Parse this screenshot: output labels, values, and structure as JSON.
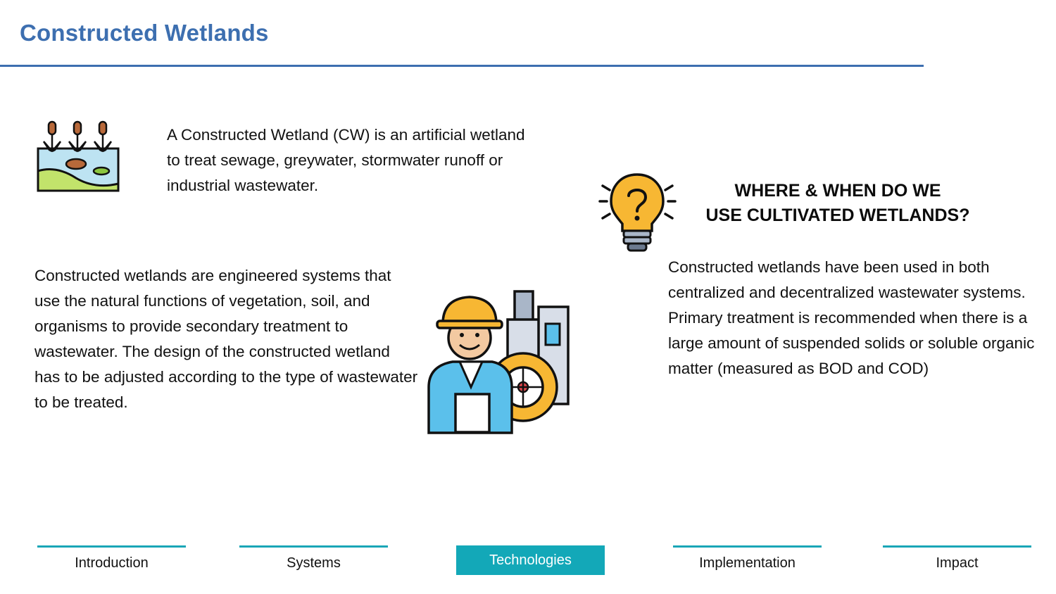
{
  "header": {
    "title": "Constructed Wetlands"
  },
  "intro": {
    "text": "A Constructed Wetland (CW) is an artificial wetland to treat sewage, greywater, stormwater runoff or industrial wastewater."
  },
  "body_left": {
    "text": "Constructed wetlands are engineered systems that use the natural functions of vegetation, soil, and organisms to provide secondary treatment to wastewater. The design of the constructed wetland has to be adjusted according to the type of wastewater to be treated."
  },
  "question": {
    "heading_line1": "WHERE & WHEN DO WE",
    "heading_line2": "USE CULTIVATED WETLANDS?",
    "text": "Constructed wetlands have been used in both centralized and decentralized wastewater systems. Primary treatment is recommended when there is a large amount of suspended solids or soluble organic matter (measured as BOD and COD)"
  },
  "icons": {
    "wetland": "wetland-icon",
    "bulb": "lightbulb-question-icon",
    "engineer": "engineer-factory-icon"
  },
  "nav": {
    "items": [
      {
        "label": "Introduction",
        "active": false
      },
      {
        "label": "Systems",
        "active": false
      },
      {
        "label": "Technologies",
        "active": true
      },
      {
        "label": "Implementation",
        "active": false
      },
      {
        "label": "Impact",
        "active": false
      }
    ]
  },
  "colors": {
    "title": "#3d6fb0",
    "accent": "#13a8b8"
  }
}
